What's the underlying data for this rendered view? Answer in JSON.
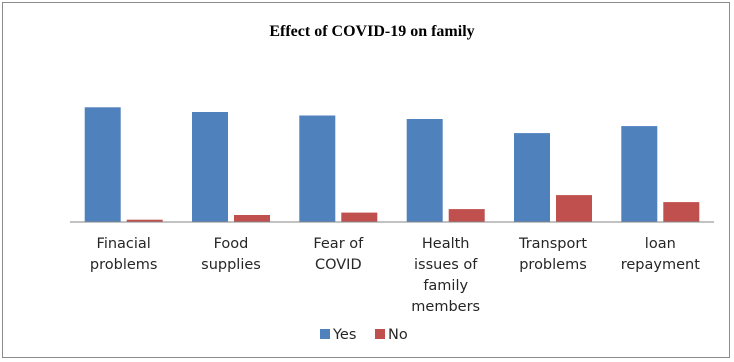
{
  "chart_data": {
    "type": "bar",
    "title": "Effect of COVID-19 on family",
    "categories": [
      [
        "Finacial",
        "problems"
      ],
      [
        "Food",
        "supplies"
      ],
      [
        "Fear of",
        "COVID"
      ],
      [
        "Health",
        "issues of",
        "family",
        "members"
      ],
      [
        "Transport",
        "problems"
      ],
      [
        "loan",
        "repayment"
      ]
    ],
    "series": [
      {
        "name": "Yes",
        "color": "#4f81bd",
        "values": [
          98,
          94,
          91,
          88,
          76,
          82
        ]
      },
      {
        "name": "No",
        "color": "#c0504d",
        "values": [
          2,
          6,
          8,
          11,
          23,
          17
        ]
      }
    ],
    "ylim": [
      0,
      100
    ],
    "grid": false,
    "legend": "bottom"
  }
}
